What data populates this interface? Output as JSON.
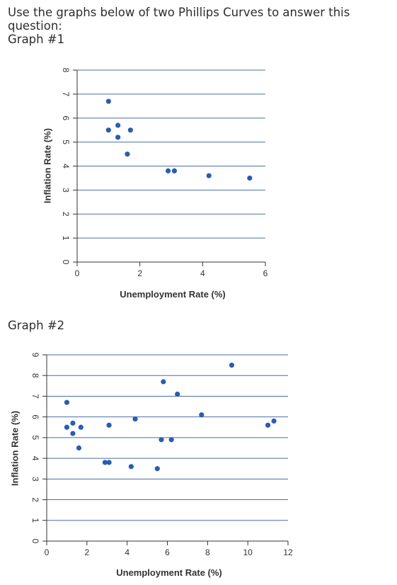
{
  "question": "Use the graphs below of two Phillips Curves to answer this question:",
  "graph1_label": "Graph #1",
  "graph2_label": "Graph #2",
  "colors": {
    "point": "#2a5db0",
    "grid": "#4a6fa5",
    "axis": "#333333"
  },
  "chart_data": [
    {
      "type": "scatter",
      "title": "",
      "xlabel": "Unemployment Rate (%)",
      "ylabel": "Inflation Rate (%)",
      "xlim": [
        0,
        6
      ],
      "ylim": [
        0,
        8
      ],
      "xticks": [
        0,
        2,
        4,
        6
      ],
      "yticks": [
        0,
        1,
        2,
        3,
        4,
        5,
        6,
        7,
        8
      ],
      "grid": "horizontal",
      "points": [
        {
          "x": 1.0,
          "y": 6.7
        },
        {
          "x": 1.0,
          "y": 5.5
        },
        {
          "x": 1.3,
          "y": 5.7
        },
        {
          "x": 1.3,
          "y": 5.2
        },
        {
          "x": 1.7,
          "y": 5.5
        },
        {
          "x": 1.6,
          "y": 4.5
        },
        {
          "x": 2.9,
          "y": 3.8
        },
        {
          "x": 3.1,
          "y": 3.8
        },
        {
          "x": 4.2,
          "y": 3.6
        },
        {
          "x": 5.5,
          "y": 3.5
        }
      ]
    },
    {
      "type": "scatter",
      "title": "",
      "xlabel": "Unemployment Rate (%)",
      "ylabel": "Inflation Rate (%)",
      "xlim": [
        0,
        12
      ],
      "ylim": [
        0,
        9
      ],
      "xticks": [
        0,
        2,
        4,
        6,
        8,
        10,
        12
      ],
      "yticks": [
        0,
        1,
        2,
        3,
        4,
        5,
        6,
        7,
        8,
        9
      ],
      "grid": "horizontal",
      "points": [
        {
          "x": 1.0,
          "y": 6.7
        },
        {
          "x": 1.0,
          "y": 5.5
        },
        {
          "x": 1.3,
          "y": 5.7
        },
        {
          "x": 1.3,
          "y": 5.2
        },
        {
          "x": 1.7,
          "y": 5.5
        },
        {
          "x": 1.6,
          "y": 4.5
        },
        {
          "x": 2.9,
          "y": 3.8
        },
        {
          "x": 3.1,
          "y": 3.8
        },
        {
          "x": 3.1,
          "y": 5.6
        },
        {
          "x": 4.2,
          "y": 3.6
        },
        {
          "x": 4.4,
          "y": 5.9
        },
        {
          "x": 5.5,
          "y": 3.5
        },
        {
          "x": 5.7,
          "y": 4.9
        },
        {
          "x": 5.8,
          "y": 7.7
        },
        {
          "x": 6.2,
          "y": 4.9
        },
        {
          "x": 6.5,
          "y": 7.1
        },
        {
          "x": 7.7,
          "y": 6.1
        },
        {
          "x": 9.2,
          "y": 8.5
        },
        {
          "x": 11.0,
          "y": 5.6
        },
        {
          "x": 11.3,
          "y": 5.8
        }
      ]
    }
  ]
}
